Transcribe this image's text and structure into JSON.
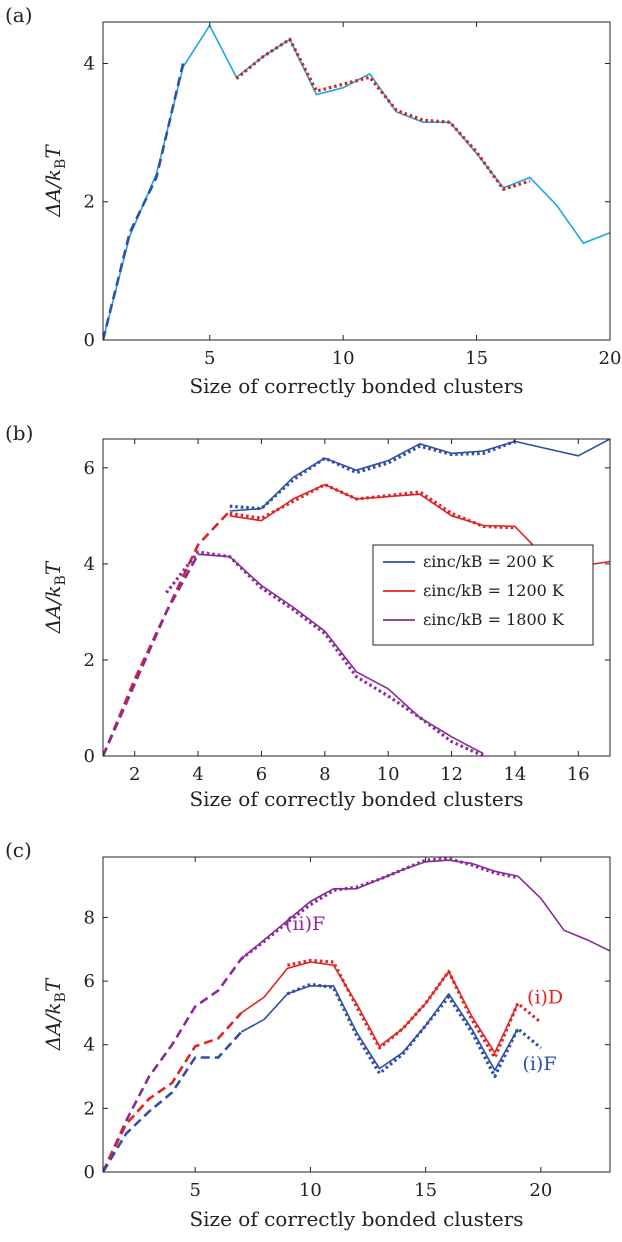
{
  "chart_data": [
    {
      "type": "line",
      "panel_label": "(a)",
      "xlabel": "Size of correctly bonded clusters",
      "ylabel": "ΔA/k T",
      "xlim": [
        1,
        20
      ],
      "ylim": [
        0,
        4.6
      ],
      "xticks": [
        5,
        10,
        15,
        20
      ],
      "yticks": [
        0,
        2,
        4
      ],
      "grid": false,
      "series": [
        {
          "color": "#1aa7e0",
          "style": "solid",
          "x": [
            1,
            2,
            3,
            4,
            5,
            6,
            7,
            8,
            9,
            10,
            11,
            12,
            13,
            14,
            15,
            16,
            17,
            18,
            19,
            20
          ],
          "y": [
            0,
            1.5,
            2.4,
            3.95,
            4.55,
            3.8,
            4.1,
            4.35,
            3.55,
            3.65,
            3.85,
            3.3,
            3.15,
            3.15,
            2.7,
            2.2,
            2.35,
            1.95,
            1.4,
            1.55
          ]
        },
        {
          "color": "#d42020",
          "style": "dotted",
          "x": [
            6,
            7,
            8,
            9,
            10,
            11,
            12,
            13,
            14,
            15,
            16,
            17
          ],
          "y": [
            3.78,
            4.1,
            4.35,
            3.6,
            3.7,
            3.8,
            3.32,
            3.18,
            3.15,
            2.72,
            2.18,
            2.3
          ]
        },
        {
          "color": "#2e4fa8",
          "style": "dashed",
          "x": [
            1,
            2,
            3,
            4
          ],
          "y": [
            0,
            1.55,
            2.35,
            4.0
          ]
        }
      ]
    },
    {
      "type": "line",
      "panel_label": "(b)",
      "xlabel": "Size of correctly bonded clusters",
      "ylabel": "ΔA/k T",
      "xlim": [
        1,
        17
      ],
      "ylim": [
        0,
        6.6
      ],
      "xticks": [
        2,
        4,
        6,
        8,
        10,
        12,
        14,
        16
      ],
      "yticks": [
        0,
        2,
        4,
        6
      ],
      "grid": false,
      "legend": {
        "position": "right",
        "entries": [
          {
            "label": "εinc/kB = 200 K",
            "color": "#2e4fa8"
          },
          {
            "label": "εinc/kB = 1200 K",
            "color": "#e02424"
          },
          {
            "label": "εinc/kB = 1800 K",
            "color": "#8a2a9a"
          }
        ]
      },
      "series": [
        {
          "color": "#2e4fa8",
          "style": "solid",
          "x": [
            5,
            6,
            7,
            8,
            9,
            10,
            11,
            12,
            13,
            14,
            15,
            16,
            17
          ],
          "y": [
            5.1,
            5.15,
            5.8,
            6.2,
            5.95,
            6.15,
            6.5,
            6.3,
            6.35,
            6.55,
            6.4,
            6.25,
            6.6
          ]
        },
        {
          "color": "#2e4fa8",
          "style": "dotted",
          "x": [
            5,
            6,
            7,
            8,
            9,
            10,
            11,
            12,
            13,
            14
          ],
          "y": [
            5.2,
            5.15,
            5.75,
            6.2,
            5.9,
            6.1,
            6.45,
            6.28,
            6.3,
            6.55
          ]
        },
        {
          "color": "#e02424",
          "style": "solid",
          "x": [
            5,
            6,
            7,
            8,
            9,
            10,
            11,
            12,
            13,
            14,
            15,
            16,
            17
          ],
          "y": [
            5.0,
            4.9,
            5.35,
            5.65,
            5.35,
            5.4,
            5.45,
            5.0,
            4.8,
            4.78,
            4.1,
            3.95,
            4.05
          ]
        },
        {
          "color": "#e02424",
          "style": "dotted",
          "x": [
            5,
            6,
            7,
            8,
            9,
            10,
            11,
            12,
            13,
            14
          ],
          "y": [
            5.05,
            4.95,
            5.3,
            5.65,
            5.35,
            5.42,
            5.5,
            5.05,
            4.78,
            4.75
          ]
        },
        {
          "color": "#e02424",
          "style": "dashed",
          "x": [
            1,
            2,
            3,
            4,
            5
          ],
          "y": [
            0,
            1.6,
            3.0,
            4.4,
            5.1
          ]
        },
        {
          "color": "#8a2a9a",
          "style": "solid",
          "x": [
            4,
            5,
            6,
            7,
            8,
            9,
            10,
            11,
            12,
            13
          ],
          "y": [
            4.2,
            4.15,
            3.55,
            3.1,
            2.6,
            1.75,
            1.4,
            0.8,
            0.4,
            0.05
          ]
        },
        {
          "color": "#8a2a9a",
          "style": "dotted",
          "x": [
            3,
            4,
            5,
            6,
            7,
            8,
            9,
            10,
            11,
            12,
            13
          ],
          "y": [
            3.4,
            4.25,
            4.15,
            3.5,
            3.05,
            2.55,
            1.65,
            1.25,
            0.8,
            0.3,
            0.0
          ]
        },
        {
          "color": "#8a2a9a",
          "style": "dashed",
          "x": [
            1,
            2,
            3,
            4
          ],
          "y": [
            0,
            1.5,
            3.0,
            4.2
          ]
        }
      ]
    },
    {
      "type": "line",
      "panel_label": "(c)",
      "xlabel": "Size of correctly bonded clusters",
      "ylabel": "ΔA/k T",
      "xlim": [
        1,
        23
      ],
      "ylim": [
        0,
        9.9
      ],
      "xticks": [
        5,
        10,
        15,
        20
      ],
      "yticks": [
        0,
        2,
        4,
        6,
        8
      ],
      "grid": false,
      "annotations": [
        {
          "text": "(ii)F",
          "color": "#8a2a9a",
          "x": 8.9,
          "y": 7.6
        },
        {
          "text": "(i)D",
          "color": "#e02424",
          "x": 19.4,
          "y": 5.3
        },
        {
          "text": "(i)F",
          "color": "#2e4fa8",
          "x": 19.2,
          "y": 3.2
        }
      ],
      "series": [
        {
          "color": "#8a2a9a",
          "style": "solid",
          "x": [
            7,
            8,
            9,
            10,
            11,
            12,
            13,
            14,
            15,
            16,
            17,
            18,
            19,
            20,
            21,
            22,
            23
          ],
          "y": [
            6.7,
            7.3,
            7.9,
            8.5,
            8.9,
            8.9,
            9.2,
            9.5,
            9.75,
            9.8,
            9.7,
            9.45,
            9.3,
            8.6,
            7.6,
            7.3,
            6.95
          ]
        },
        {
          "color": "#8a2a9a",
          "style": "dotted",
          "x": [
            7,
            8,
            9,
            10,
            11,
            12,
            13,
            14,
            15,
            16,
            17,
            18,
            19
          ],
          "y": [
            6.7,
            7.25,
            7.85,
            8.4,
            8.85,
            8.95,
            9.2,
            9.5,
            9.8,
            9.85,
            9.65,
            9.4,
            9.25
          ]
        },
        {
          "color": "#8a2a9a",
          "style": "dashed",
          "x": [
            1,
            2,
            3,
            4,
            5,
            6,
            7
          ],
          "y": [
            0,
            1.6,
            3.0,
            4.0,
            5.2,
            5.7,
            6.7
          ]
        },
        {
          "color": "#e02424",
          "style": "solid",
          "x": [
            7,
            8,
            9,
            10,
            11,
            12,
            13,
            14,
            15,
            16,
            17,
            18,
            19
          ],
          "y": [
            5.0,
            5.5,
            6.4,
            6.6,
            6.5,
            5.3,
            3.95,
            4.5,
            5.3,
            6.3,
            4.9,
            3.75,
            5.3
          ]
        },
        {
          "color": "#e02424",
          "style": "dotted",
          "x": [
            9,
            10,
            11,
            12,
            13,
            14,
            15,
            16,
            17,
            18,
            19,
            20
          ],
          "y": [
            6.5,
            6.65,
            6.6,
            5.2,
            3.9,
            4.5,
            5.3,
            6.3,
            4.8,
            3.6,
            5.3,
            4.7
          ]
        },
        {
          "color": "#e02424",
          "style": "dashed",
          "x": [
            1,
            2,
            3,
            4,
            5,
            6,
            7
          ],
          "y": [
            0,
            1.5,
            2.3,
            2.8,
            3.95,
            4.2,
            5.0
          ]
        },
        {
          "color": "#2e4fa8",
          "style": "solid",
          "x": [
            7,
            8,
            9,
            10,
            11,
            12,
            13,
            14,
            15,
            16,
            17,
            18,
            19
          ],
          "y": [
            4.4,
            4.8,
            5.6,
            5.85,
            5.85,
            4.4,
            3.25,
            3.75,
            4.6,
            5.6,
            4.5,
            3.2,
            4.5
          ]
        },
        {
          "color": "#2e4fa8",
          "style": "dotted",
          "x": [
            9,
            10,
            11,
            12,
            13,
            14,
            15,
            16,
            17,
            18,
            19,
            20
          ],
          "y": [
            5.6,
            5.9,
            5.8,
            4.3,
            3.1,
            3.7,
            4.6,
            5.5,
            4.4,
            3.0,
            4.5,
            3.9
          ]
        },
        {
          "color": "#2e4fa8",
          "style": "dashed",
          "x": [
            1,
            2,
            3,
            4,
            5,
            6,
            7
          ],
          "y": [
            0,
            1.2,
            1.9,
            2.5,
            3.6,
            3.6,
            4.4
          ]
        }
      ]
    }
  ]
}
